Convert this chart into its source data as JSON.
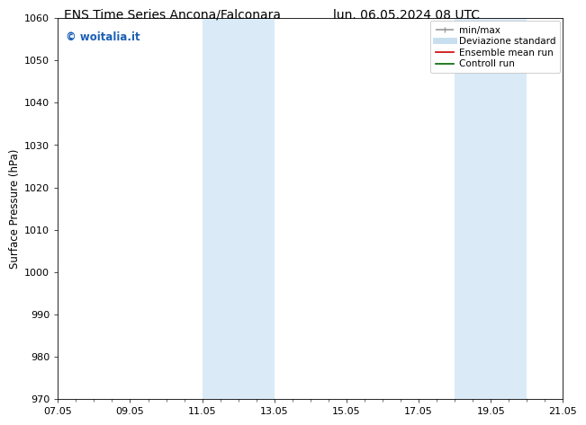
{
  "title_left": "ENS Time Series Ancona/Falconara",
  "title_right": "lun. 06.05.2024 08 UTC",
  "ylabel": "Surface Pressure (hPa)",
  "ylim": [
    970,
    1060
  ],
  "yticks": [
    970,
    980,
    990,
    1000,
    1010,
    1020,
    1030,
    1040,
    1050,
    1060
  ],
  "xtick_labels": [
    "07.05",
    "09.05",
    "11.05",
    "13.05",
    "15.05",
    "17.05",
    "19.05",
    "21.05"
  ],
  "xtick_positions": [
    0,
    2,
    4,
    6,
    8,
    10,
    12,
    14
  ],
  "xlim": [
    0,
    14
  ],
  "shaded_regions": [
    {
      "x_start": 4,
      "x_end": 6,
      "color": "#daeaf7"
    },
    {
      "x_start": 11,
      "x_end": 13,
      "color": "#daeaf7"
    }
  ],
  "watermark_text": "© woitalia.it",
  "watermark_color": "#1a5fb4",
  "legend_entries": [
    {
      "label": "min/max",
      "color": "#999999",
      "lw": 1.2
    },
    {
      "label": "Deviazione standard",
      "color": "#c8dff0",
      "lw": 5
    },
    {
      "label": "Ensemble mean run",
      "color": "#cc0000",
      "lw": 1.2
    },
    {
      "label": "Controll run",
      "color": "#006600",
      "lw": 1.2
    }
  ],
  "bg_color": "#ffffff",
  "spine_color": "#000000",
  "title_fontsize": 10,
  "tick_fontsize": 8,
  "ylabel_fontsize": 8.5,
  "watermark_fontsize": 8.5,
  "legend_fontsize": 7.5
}
